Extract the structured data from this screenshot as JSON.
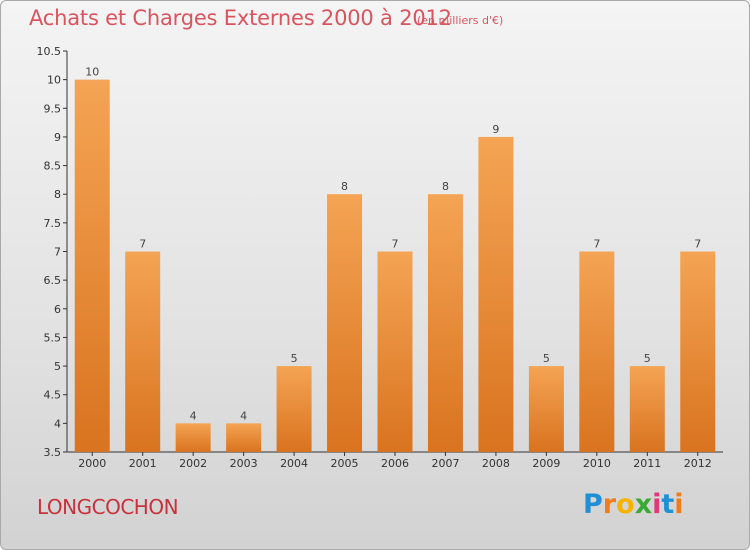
{
  "header": {
    "title": "Achats et Charges Externes 2000 à 2012",
    "unit": "(en milliers d'€)"
  },
  "footer": {
    "commune": "LONGCOCHON",
    "logo": [
      "P",
      "r",
      "o",
      "x",
      "i",
      "t",
      "i"
    ]
  },
  "colors": {
    "title": "#d8555f",
    "bar_top": "#f4a454",
    "bar_bottom": "#d9731f",
    "axis": "#333333"
  },
  "chart_data": {
    "type": "bar",
    "title": "Achats et Charges Externes 2000 à 2012",
    "categories": [
      "2000",
      "2001",
      "2002",
      "2003",
      "2004",
      "2005",
      "2006",
      "2007",
      "2008",
      "2009",
      "2010",
      "2011",
      "2012"
    ],
    "values": [
      10,
      7,
      4,
      4,
      5,
      8,
      7,
      8,
      9,
      5,
      7,
      5,
      7
    ],
    "ylim": [
      3.5,
      10.5
    ],
    "yticks": [
      "3.5",
      "4",
      "4.5",
      "5",
      "5.5",
      "6",
      "6.5",
      "7",
      "7.5",
      "8",
      "8.5",
      "9",
      "9.5",
      "10",
      "10.5"
    ],
    "xlabel": "",
    "ylabel": "",
    "grid": false
  }
}
